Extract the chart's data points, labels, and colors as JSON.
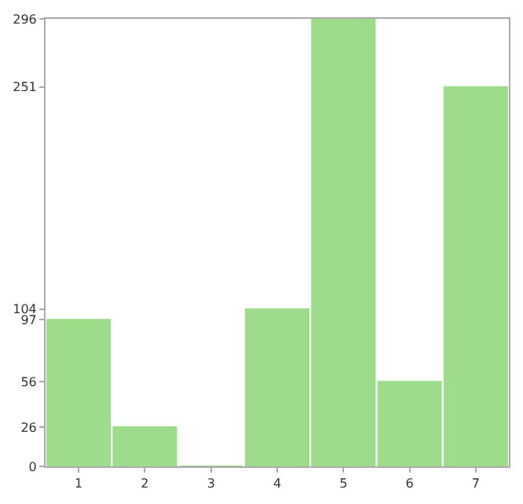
{
  "chart_data": {
    "type": "bar",
    "categories": [
      "1",
      "2",
      "3",
      "4",
      "5",
      "6",
      "7"
    ],
    "values": [
      97,
      26,
      0,
      104,
      296,
      56,
      251
    ],
    "color": "#9ddc8a",
    "ylim": [
      0,
      296
    ],
    "yticks": [
      0,
      26,
      56,
      97,
      104,
      251,
      296
    ]
  }
}
